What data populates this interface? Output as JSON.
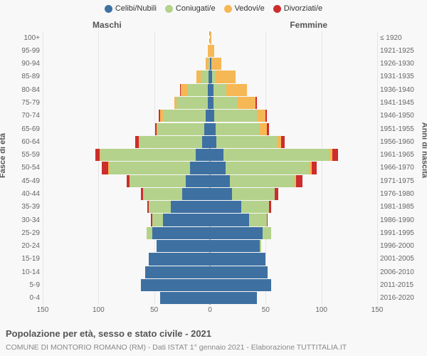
{
  "chart": {
    "type": "population-pyramid-stacked",
    "background_color": "#f8f8f8",
    "title": "Popolazione per età, sesso e stato civile - 2021",
    "subtitle": "COMUNE DI MONTORIO ROMANO (RM) - Dati ISTAT 1° gennaio 2021 - Elaborazione TUTTITALIA.IT",
    "legend": [
      {
        "label": "Celibi/Nubili",
        "color": "#3e71a2"
      },
      {
        "label": "Coniugati/e",
        "color": "#b4d28b"
      },
      {
        "label": "Vedovi/e",
        "color": "#f6b755"
      },
      {
        "label": "Divorziati/e",
        "color": "#cc2d2d"
      }
    ],
    "gender_labels": {
      "left": "Maschi",
      "right": "Femmine"
    },
    "y_title_left": "Fasce di età",
    "y_title_right": "Anni di nascita",
    "left_axis": [
      "100+",
      "95-99",
      "90-94",
      "85-89",
      "80-84",
      "75-79",
      "70-74",
      "65-69",
      "60-64",
      "55-59",
      "50-54",
      "45-49",
      "40-44",
      "35-39",
      "30-34",
      "25-29",
      "20-24",
      "15-19",
      "10-14",
      "5-9",
      "0-4"
    ],
    "right_axis": [
      "≤ 1920",
      "1921-1925",
      "1926-1930",
      "1931-1935",
      "1936-1940",
      "1941-1945",
      "1946-1950",
      "1951-1955",
      "1956-1960",
      "1961-1965",
      "1966-1970",
      "1971-1975",
      "1976-1980",
      "1981-1985",
      "1986-1990",
      "1991-1995",
      "1996-2000",
      "2001-2005",
      "2006-2010",
      "2011-2015",
      "2016-2020"
    ],
    "x_axis": {
      "max": 150,
      "ticks": [
        150,
        100,
        50,
        0,
        50,
        100,
        150
      ]
    },
    "rows": [
      {
        "m": [
          0,
          0,
          0,
          0
        ],
        "f": [
          0,
          0,
          1,
          0
        ]
      },
      {
        "m": [
          0,
          0,
          2,
          0
        ],
        "f": [
          0,
          0,
          4,
          0
        ]
      },
      {
        "m": [
          0,
          1,
          3,
          0
        ],
        "f": [
          1,
          1,
          8,
          0
        ]
      },
      {
        "m": [
          1,
          7,
          4,
          0
        ],
        "f": [
          2,
          3,
          18,
          0
        ]
      },
      {
        "m": [
          2,
          18,
          6,
          1
        ],
        "f": [
          3,
          12,
          18,
          0
        ]
      },
      {
        "m": [
          2,
          28,
          2,
          0
        ],
        "f": [
          3,
          22,
          16,
          1
        ]
      },
      {
        "m": [
          4,
          38,
          3,
          1
        ],
        "f": [
          4,
          38,
          8,
          1
        ]
      },
      {
        "m": [
          5,
          42,
          1,
          1
        ],
        "f": [
          5,
          40,
          6,
          2
        ]
      },
      {
        "m": [
          7,
          56,
          1,
          3
        ],
        "f": [
          6,
          54,
          4,
          3
        ]
      },
      {
        "m": [
          13,
          85,
          1,
          4
        ],
        "f": [
          12,
          95,
          3,
          5
        ]
      },
      {
        "m": [
          18,
          72,
          1,
          6
        ],
        "f": [
          14,
          75,
          2,
          5
        ]
      },
      {
        "m": [
          22,
          50,
          0,
          3
        ],
        "f": [
          18,
          58,
          1,
          6
        ]
      },
      {
        "m": [
          25,
          35,
          0,
          2
        ],
        "f": [
          20,
          38,
          0,
          3
        ]
      },
      {
        "m": [
          35,
          20,
          0,
          1
        ],
        "f": [
          28,
          25,
          0,
          2
        ]
      },
      {
        "m": [
          42,
          10,
          0,
          1
        ],
        "f": [
          35,
          16,
          0,
          1
        ]
      },
      {
        "m": [
          52,
          5,
          0,
          0
        ],
        "f": [
          47,
          8,
          0,
          0
        ]
      },
      {
        "m": [
          48,
          0,
          0,
          0
        ],
        "f": [
          45,
          1,
          0,
          0
        ]
      },
      {
        "m": [
          55,
          0,
          0,
          0
        ],
        "f": [
          50,
          0,
          0,
          0
        ]
      },
      {
        "m": [
          58,
          0,
          0,
          0
        ],
        "f": [
          52,
          0,
          0,
          0
        ]
      },
      {
        "m": [
          62,
          0,
          0,
          0
        ],
        "f": [
          55,
          0,
          0,
          0
        ]
      },
      {
        "m": [
          45,
          0,
          0,
          0
        ],
        "f": [
          42,
          0,
          0,
          0
        ]
      }
    ],
    "font_sizes": {
      "legend": 11,
      "axis": 10,
      "title": 13,
      "subtitle": 10.5,
      "gender": 12
    }
  }
}
